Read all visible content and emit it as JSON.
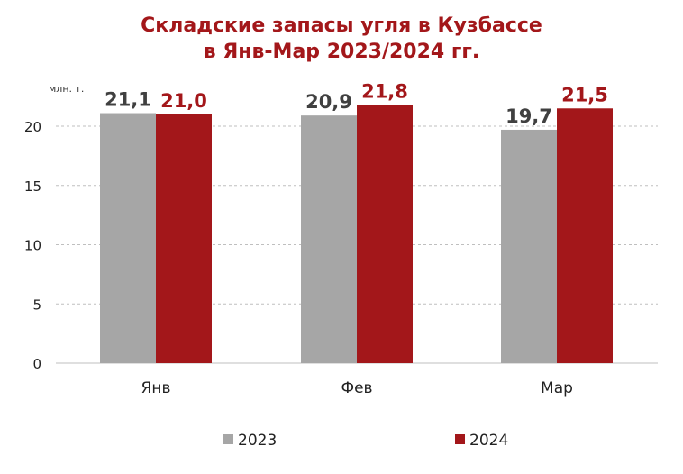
{
  "chart_data": {
    "type": "bar",
    "title": "Складские запасы угля в Кузбассе",
    "subtitle": "в Янв-Мар 2023/2024 гг.",
    "ylabel": "млн. т.",
    "xlabel": "",
    "categories": [
      "Янв",
      "Фев",
      "Мар"
    ],
    "series": [
      {
        "name": "2023",
        "values": [
          21.1,
          20.9,
          19.7
        ],
        "labels": [
          "21,1",
          "20,9",
          "19,7"
        ],
        "color": "#a6a6a6",
        "label_color": "#404040"
      },
      {
        "name": "2024",
        "values": [
          21.0,
          21.8,
          21.5
        ],
        "labels": [
          "21,0",
          "21,8",
          "21,5"
        ],
        "color": "#a3171a",
        "label_color": "#a3171a"
      }
    ],
    "ylim": [
      0,
      22
    ],
    "yticks": [
      0,
      5,
      10,
      15,
      20
    ],
    "grid": true,
    "legend": "bottom"
  }
}
